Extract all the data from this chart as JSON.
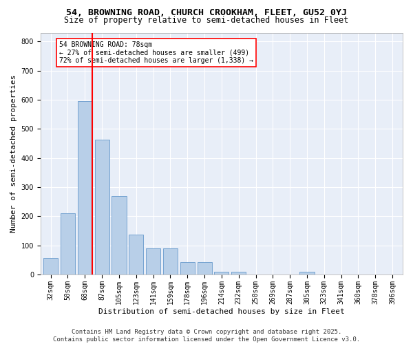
{
  "title": "54, BROWNING ROAD, CHURCH CROOKHAM, FLEET, GU52 0YJ",
  "subtitle": "Size of property relative to semi-detached houses in Fleet",
  "xlabel": "Distribution of semi-detached houses by size in Fleet",
  "ylabel": "Number of semi-detached properties",
  "categories": [
    "32sqm",
    "50sqm",
    "68sqm",
    "87sqm",
    "105sqm",
    "123sqm",
    "141sqm",
    "159sqm",
    "178sqm",
    "196sqm",
    "214sqm",
    "232sqm",
    "250sqm",
    "269sqm",
    "287sqm",
    "305sqm",
    "323sqm",
    "341sqm",
    "360sqm",
    "378sqm",
    "396sqm"
  ],
  "values": [
    57,
    210,
    595,
    463,
    270,
    138,
    90,
    90,
    43,
    43,
    10,
    10,
    0,
    0,
    0,
    10,
    0,
    0,
    0,
    0,
    0
  ],
  "bar_color": "#b8cfe8",
  "bar_edge_color": "#6699cc",
  "vline_color": "red",
  "annotation_text": "54 BROWNING ROAD: 78sqm\n← 27% of semi-detached houses are smaller (499)\n72% of semi-detached houses are larger (1,338) →",
  "annotation_box_color": "white",
  "annotation_box_edge": "red",
  "ylim": [
    0,
    830
  ],
  "yticks": [
    0,
    100,
    200,
    300,
    400,
    500,
    600,
    700,
    800
  ],
  "background_color": "#e8eef8",
  "footer_line1": "Contains HM Land Registry data © Crown copyright and database right 2025.",
  "footer_line2": "Contains public sector information licensed under the Open Government Licence v3.0.",
  "title_fontsize": 9.5,
  "subtitle_fontsize": 8.5,
  "xlabel_fontsize": 8,
  "ylabel_fontsize": 8,
  "tick_fontsize": 7,
  "annot_fontsize": 7,
  "footer_fontsize": 6.5
}
